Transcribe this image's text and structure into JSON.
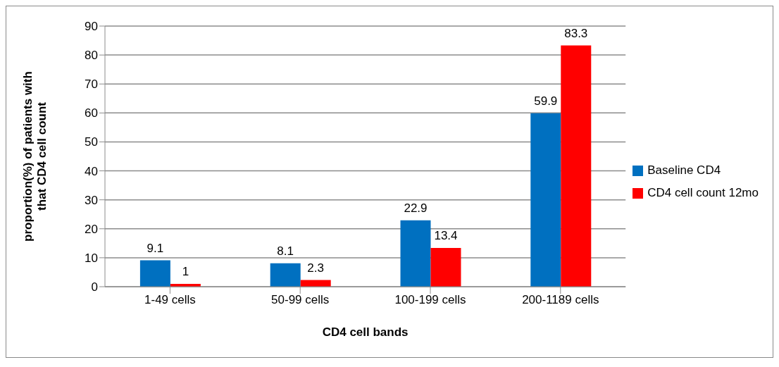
{
  "chart_data": {
    "type": "bar",
    "xlabel": "CD4 cell bands",
    "ylabel": "proportion(%) of patients with that CD4 cell count",
    "categories": [
      "1-49 cells",
      "50-99 cells",
      "100-199 cells",
      "200-1189 cells"
    ],
    "series": [
      {
        "name": "Baseline CD4",
        "color": "#0070c0",
        "values": [
          9.1,
          8.1,
          22.9,
          59.9
        ]
      },
      {
        "name": "CD4 cell count 12mo",
        "color": "#ff0000",
        "values": [
          1,
          2.3,
          13.4,
          83.3
        ]
      }
    ],
    "ylim": [
      0,
      90
    ],
    "yticks": [
      0,
      10,
      20,
      30,
      40,
      50,
      60,
      70,
      80,
      90
    ],
    "grid": "y",
    "legend": "right",
    "data_labels": true
  }
}
